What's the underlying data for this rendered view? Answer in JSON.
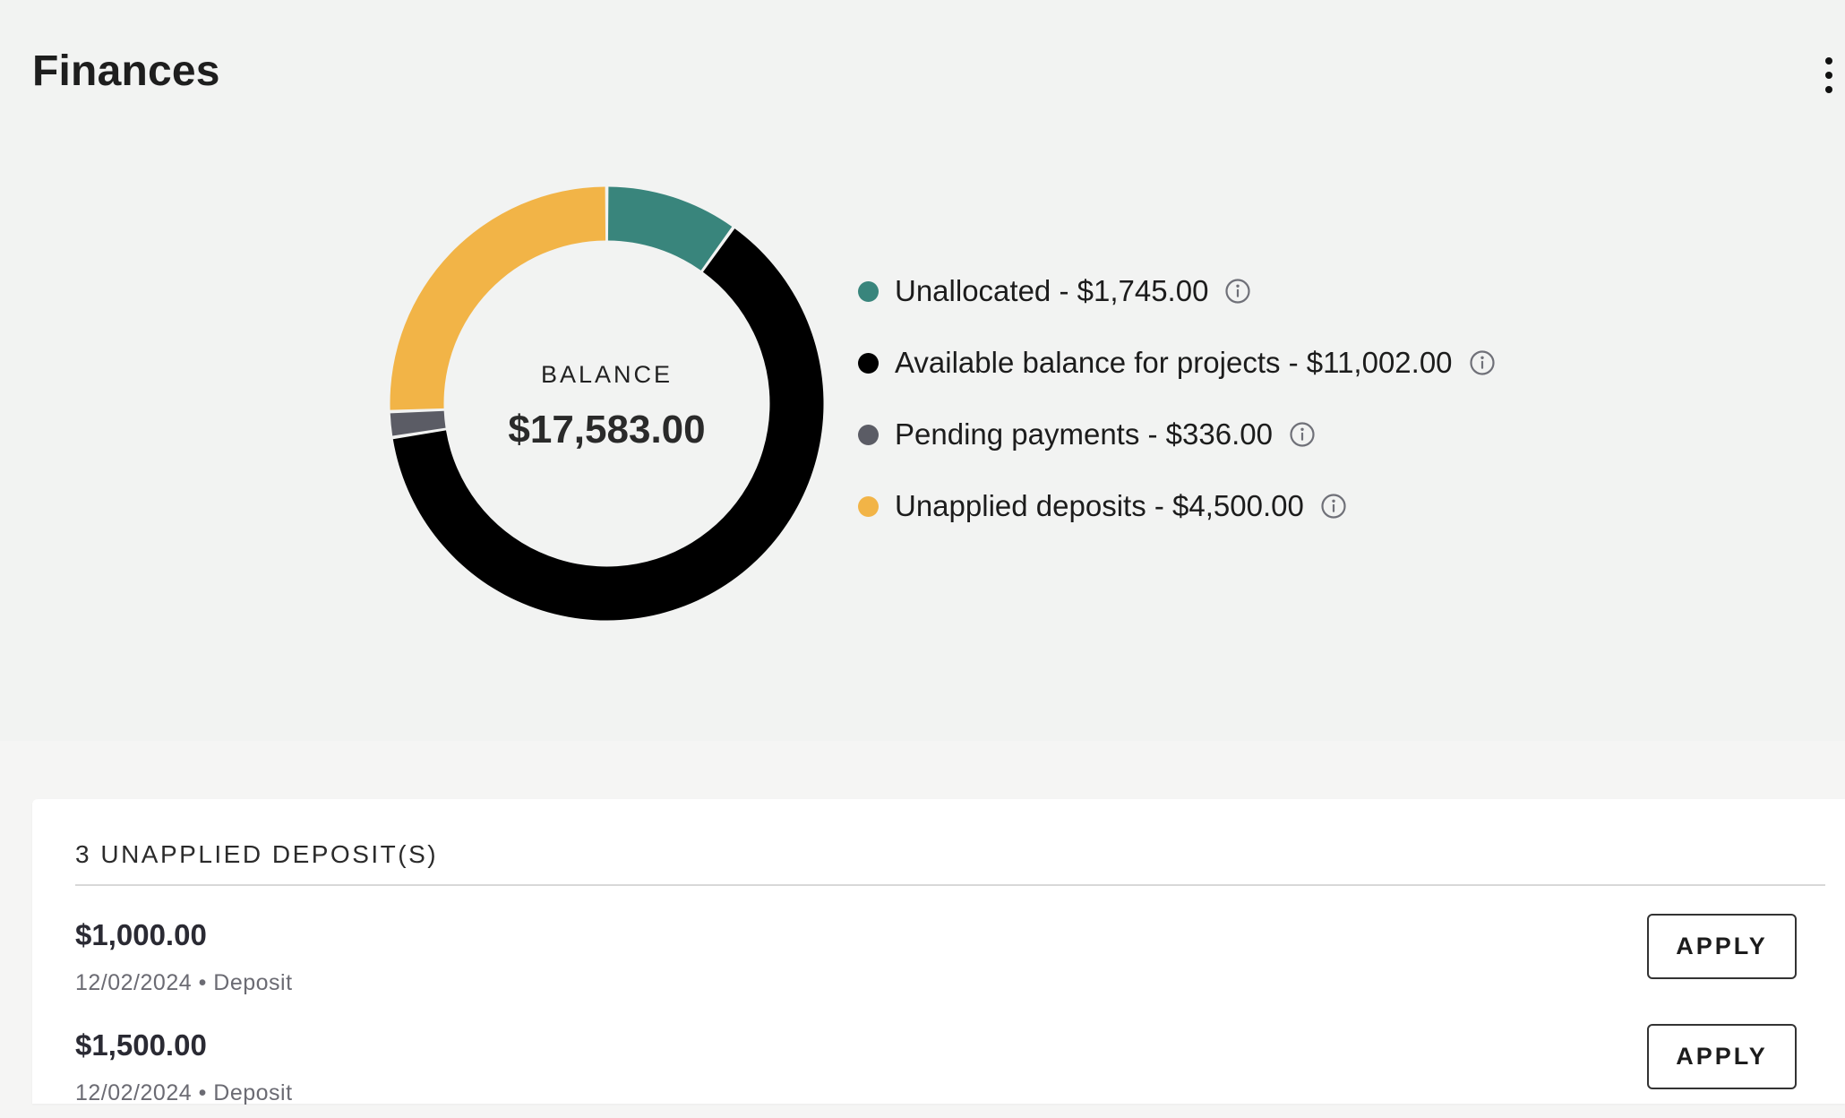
{
  "header": {
    "title": "Finances",
    "more_icon": "more-vertical-icon"
  },
  "balance": {
    "label": "BALANCE",
    "value": "$17,583.00"
  },
  "chart_data": {
    "type": "pie",
    "style": "donut",
    "title": "",
    "categories": [
      "Unallocated",
      "Available balance for projects",
      "Pending payments",
      "Unapplied deposits"
    ],
    "values": [
      1745.0,
      11002.0,
      336.0,
      4500.0
    ],
    "colors": [
      "#39857c",
      "#000000",
      "#5b5c65",
      "#f2b447"
    ],
    "center_label": "BALANCE",
    "center_value": "$17,583.00",
    "legend": "right"
  },
  "legend": {
    "items": [
      {
        "label": "Unallocated - $1,745.00",
        "color": "#39857c",
        "icon": "info-icon"
      },
      {
        "label": "Available balance for projects - $11,002.00",
        "color": "#000000",
        "icon": "info-icon"
      },
      {
        "label": "Pending payments - $336.00",
        "color": "#5b5c65",
        "icon": "info-icon"
      },
      {
        "label": "Unapplied deposits - $4,500.00",
        "color": "#f2b447",
        "icon": "info-icon"
      }
    ]
  },
  "deposits": {
    "title": "3 UNAPPLIED DEPOSIT(S)",
    "apply_label": "APPLY",
    "items": [
      {
        "amount": "$1,000.00",
        "meta": "12/02/2024 • Deposit"
      },
      {
        "amount": "$1,500.00",
        "meta": "12/02/2024 • Deposit"
      }
    ]
  }
}
